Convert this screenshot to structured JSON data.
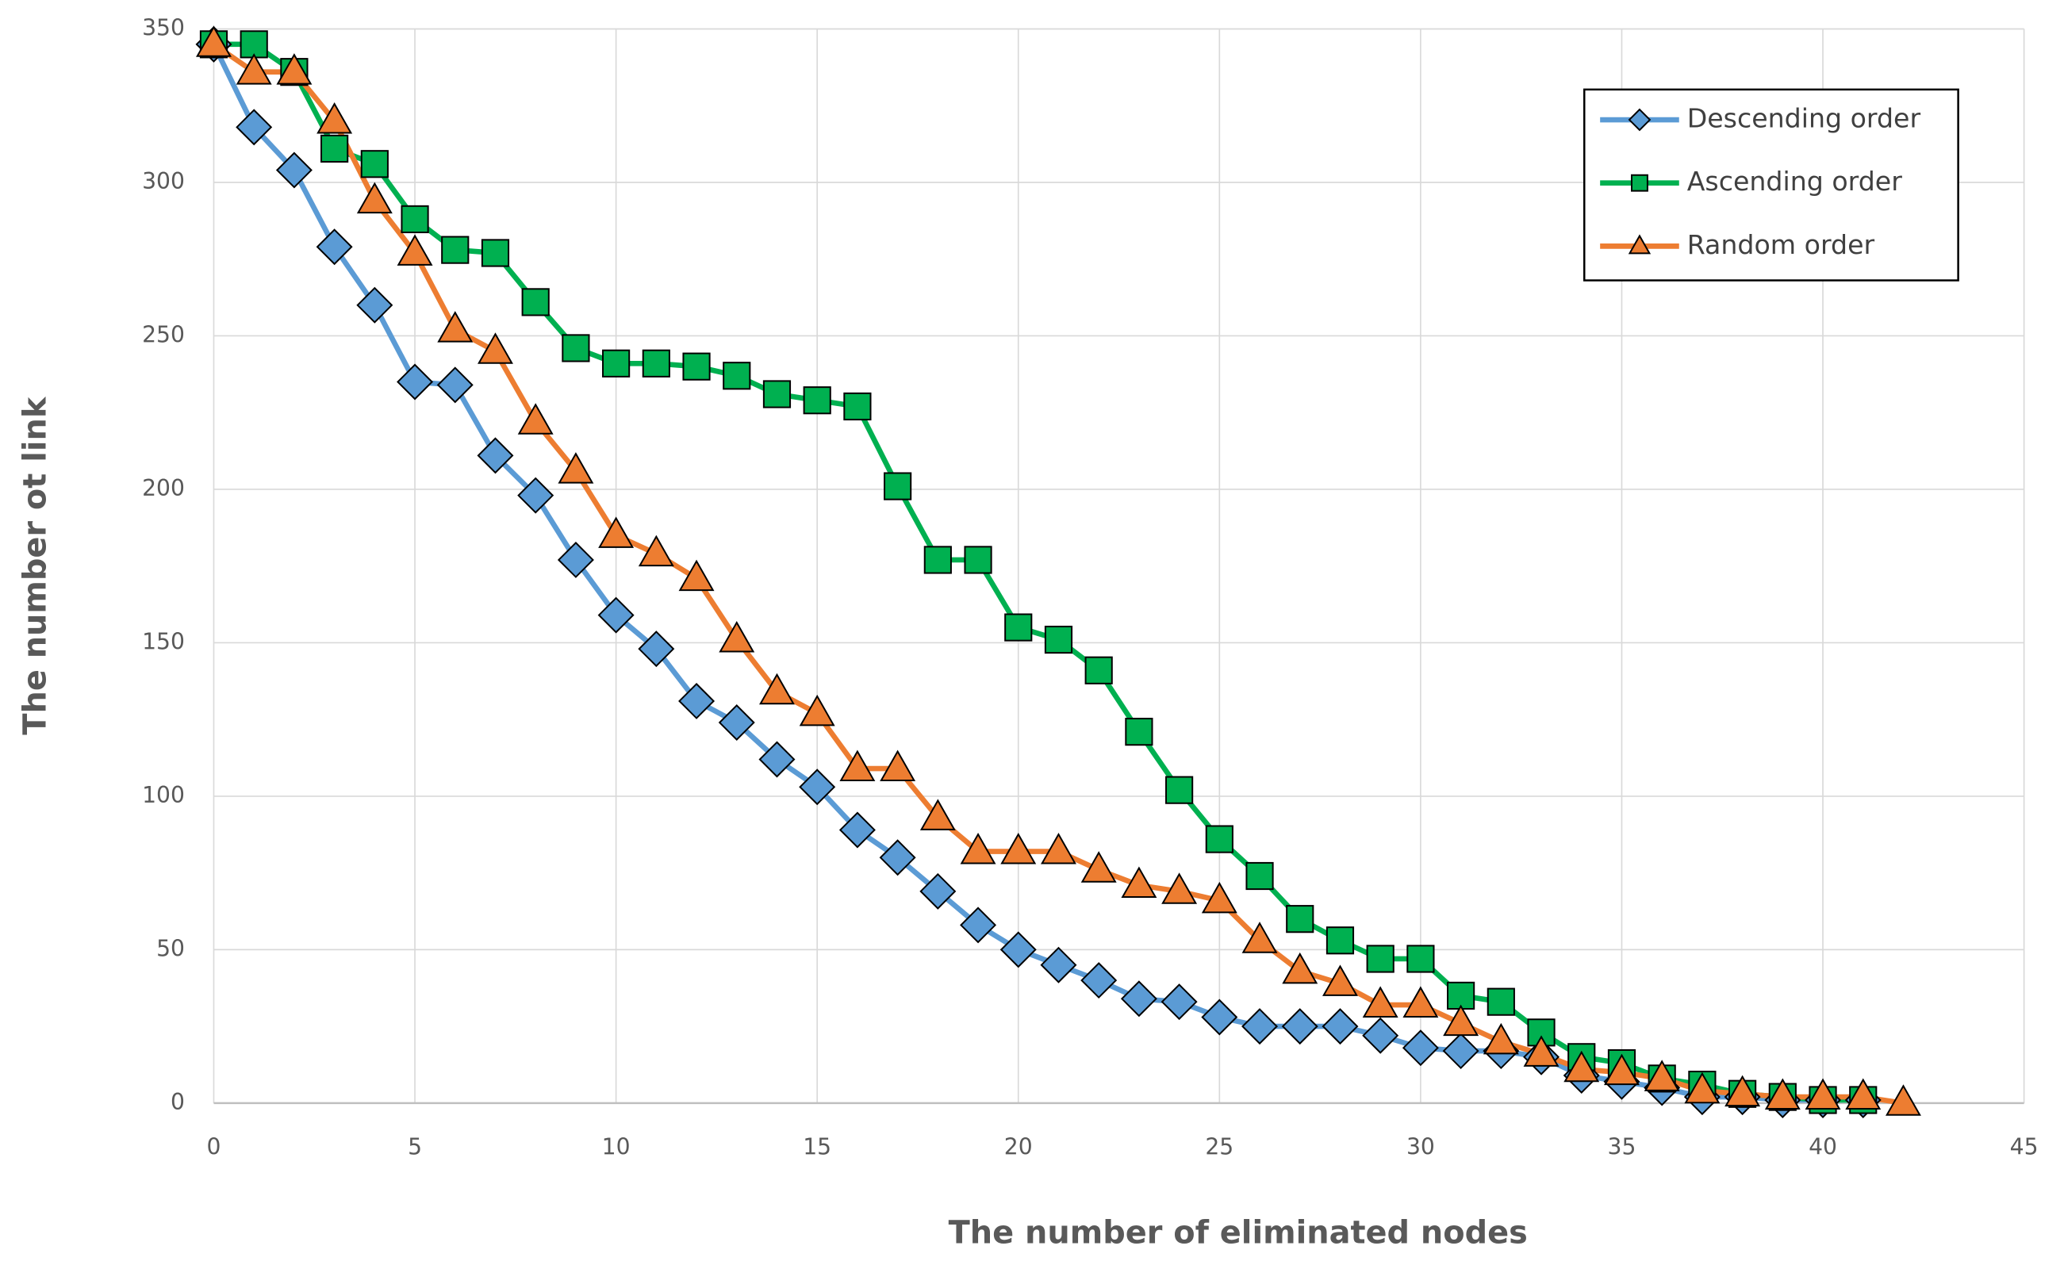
{
  "chart_data": {
    "type": "line",
    "x_label": "The number of eliminated nodes",
    "y_label": "The number ot link",
    "x": [
      0,
      1,
      2,
      3,
      4,
      5,
      6,
      7,
      8,
      9,
      10,
      11,
      12,
      13,
      14,
      15,
      16,
      17,
      18,
      19,
      20,
      21,
      22,
      23,
      24,
      25,
      26,
      27,
      28,
      29,
      30,
      31,
      32,
      33,
      34,
      35,
      36,
      37,
      38,
      39,
      40,
      41,
      42
    ],
    "series": [
      {
        "name": "Descending order",
        "color": "#5b9bd5",
        "marker": "diamond",
        "values": [
          345,
          318,
          304,
          279,
          260,
          235,
          234,
          211,
          198,
          177,
          159,
          148,
          131,
          124,
          112,
          103,
          89,
          80,
          69,
          58,
          50,
          45,
          40,
          34,
          33,
          28,
          25,
          25,
          25,
          22,
          18,
          17,
          17,
          15,
          9,
          7,
          5,
          2,
          2,
          1,
          1,
          1,
          null
        ]
      },
      {
        "name": "Ascending order",
        "color": "#00b050",
        "marker": "square",
        "values": [
          345,
          345,
          336,
          311,
          306,
          288,
          278,
          277,
          261,
          246,
          241,
          241,
          240,
          237,
          231,
          229,
          227,
          201,
          177,
          177,
          155,
          151,
          141,
          121,
          102,
          86,
          74,
          60,
          53,
          47,
          47,
          35,
          33,
          23,
          15,
          13,
          8,
          6,
          3,
          2,
          1,
          1,
          null
        ]
      },
      {
        "name": "Random order",
        "color": "#ed7d31",
        "marker": "triangle",
        "values": [
          345,
          336,
          336,
          320,
          294,
          277,
          252,
          245,
          222,
          206,
          185,
          179,
          171,
          151,
          134,
          127,
          109,
          109,
          93,
          82,
          82,
          82,
          76,
          71,
          69,
          66,
          53,
          43,
          39,
          32,
          32,
          26,
          20,
          16,
          11,
          10,
          8,
          4,
          3,
          2,
          2,
          2,
          0
        ]
      }
    ],
    "xlim": [
      0,
      45
    ],
    "xticks": [
      0,
      5,
      10,
      15,
      20,
      25,
      30,
      35,
      40,
      45
    ],
    "ylim": [
      0,
      350
    ],
    "yticks": [
      0,
      50,
      100,
      150,
      200,
      250,
      300,
      350
    ],
    "grid": true,
    "legend": "top-right"
  }
}
